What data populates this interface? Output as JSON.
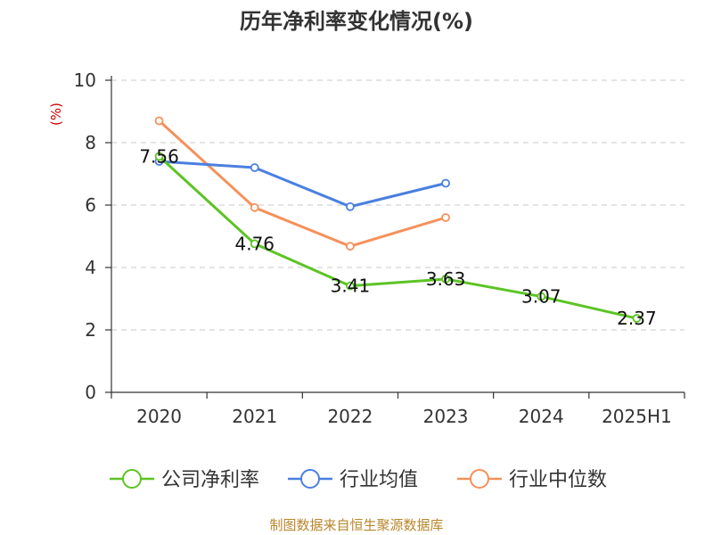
{
  "title": "历年净利率变化情况(%)",
  "source": "制图数据来自恒生聚源数据库",
  "chart_data": {
    "type": "line",
    "title": "历年净利率变化情况(%)",
    "ylabel": "(%)",
    "xlabel": "",
    "categories": [
      "2020",
      "2021",
      "2022",
      "2023",
      "2024",
      "2025H1"
    ],
    "ylim": [
      0,
      10
    ],
    "yticks": [
      0,
      2,
      4,
      6,
      8,
      10
    ],
    "grid": true,
    "legend_position": "bottom",
    "series": [
      {
        "name": "公司净利率",
        "color": "#5cc424",
        "values": [
          7.56,
          4.76,
          3.41,
          3.63,
          3.07,
          2.37
        ],
        "labels": [
          "7.56",
          "4.76",
          "3.41",
          "3.63",
          "3.07",
          "2.37"
        ]
      },
      {
        "name": "行业均值",
        "color": "#4a7fe0",
        "values": [
          7.4,
          7.2,
          5.95,
          6.7,
          null,
          null
        ]
      },
      {
        "name": "行业中位数",
        "color": "#f5915a",
        "values": [
          8.7,
          5.92,
          4.68,
          5.6,
          null,
          null
        ]
      }
    ]
  }
}
